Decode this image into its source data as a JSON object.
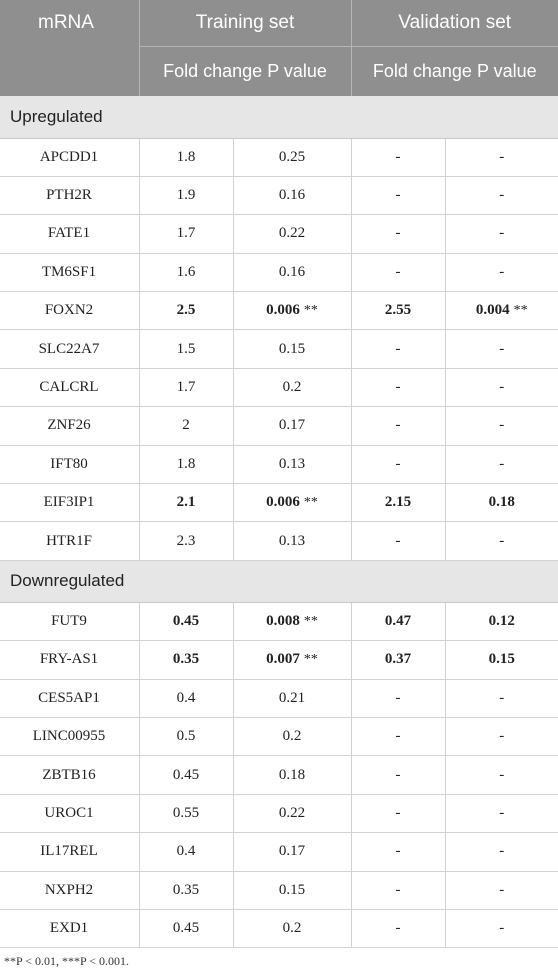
{
  "header": {
    "mrna": "mRNA",
    "training": "Training set",
    "validation": "Validation set",
    "fold_change": "Fold change",
    "p_value": "P value"
  },
  "sections": [
    {
      "label": "Upregulated",
      "rows": [
        {
          "name": "APCDD1",
          "tfc": "1.8",
          "tp": "0.25",
          "tsig": "",
          "vfc": "-",
          "vp": "-",
          "vsig": "",
          "bold": false
        },
        {
          "name": "PTH2R",
          "tfc": "1.9",
          "tp": "0.16",
          "tsig": "",
          "vfc": "-",
          "vp": "-",
          "vsig": "",
          "bold": false
        },
        {
          "name": "FATE1",
          "tfc": "1.7",
          "tp": "0.22",
          "tsig": "",
          "vfc": "-",
          "vp": "-",
          "vsig": "",
          "bold": false
        },
        {
          "name": "TM6SF1",
          "tfc": "1.6",
          "tp": "0.16",
          "tsig": "",
          "vfc": "-",
          "vp": "-",
          "vsig": "",
          "bold": false
        },
        {
          "name": "FOXN2",
          "tfc": "2.5",
          "tp": "0.006",
          "tsig": "**",
          "vfc": "2.55",
          "vp": "0.004",
          "vsig": "**",
          "bold": true
        },
        {
          "name": "SLC22A7",
          "tfc": "1.5",
          "tp": "0.15",
          "tsig": "",
          "vfc": "-",
          "vp": "-",
          "vsig": "",
          "bold": false
        },
        {
          "name": "CALCRL",
          "tfc": "1.7",
          "tp": "0.2",
          "tsig": "",
          "vfc": "-",
          "vp": "-",
          "vsig": "",
          "bold": false
        },
        {
          "name": "ZNF26",
          "tfc": "2",
          "tp": "0.17",
          "tsig": "",
          "vfc": "-",
          "vp": "-",
          "vsig": "",
          "bold": false
        },
        {
          "name": "IFT80",
          "tfc": "1.8",
          "tp": "0.13",
          "tsig": "",
          "vfc": "-",
          "vp": "-",
          "vsig": "",
          "bold": false
        },
        {
          "name": "EIF3IP1",
          "tfc": "2.1",
          "tp": "0.006",
          "tsig": "**",
          "vfc": "2.15",
          "vp": "0.18",
          "vsig": "",
          "bold": true
        },
        {
          "name": "HTR1F",
          "tfc": "2.3",
          "tp": "0.13",
          "tsig": "",
          "vfc": "-",
          "vp": "-",
          "vsig": "",
          "bold": false
        }
      ]
    },
    {
      "label": "Downregulated",
      "rows": [
        {
          "name": "FUT9",
          "tfc": "0.45",
          "tp": "0.008",
          "tsig": "**",
          "vfc": "0.47",
          "vp": "0.12",
          "vsig": "",
          "bold": true
        },
        {
          "name": "FRY-AS1",
          "tfc": "0.35",
          "tp": "0.007",
          "tsig": "**",
          "vfc": "0.37",
          "vp": "0.15",
          "vsig": "",
          "bold": true
        },
        {
          "name": "CES5AP1",
          "tfc": "0.4",
          "tp": "0.21",
          "tsig": "",
          "vfc": "-",
          "vp": "-",
          "vsig": "",
          "bold": false
        },
        {
          "name": "LINC00955",
          "tfc": "0.5",
          "tp": "0.2",
          "tsig": "",
          "vfc": "-",
          "vp": "-",
          "vsig": "",
          "bold": false
        },
        {
          "name": "ZBTB16",
          "tfc": "0.45",
          "tp": "0.18",
          "tsig": "",
          "vfc": "-",
          "vp": "-",
          "vsig": "",
          "bold": false
        },
        {
          "name": "UROC1",
          "tfc": "0.55",
          "tp": "0.22",
          "tsig": "",
          "vfc": "-",
          "vp": "-",
          "vsig": "",
          "bold": false
        },
        {
          "name": "IL17REL",
          "tfc": "0.4",
          "tp": "0.17",
          "tsig": "",
          "vfc": "-",
          "vp": "-",
          "vsig": "",
          "bold": false
        },
        {
          "name": "NXPH2",
          "tfc": "0.35",
          "tp": "0.15",
          "tsig": "",
          "vfc": "-",
          "vp": "-",
          "vsig": "",
          "bold": false
        },
        {
          "name": "EXD1",
          "tfc": "0.45",
          "tp": "0.2",
          "tsig": "",
          "vfc": "-",
          "vp": "-",
          "vsig": "",
          "bold": false
        }
      ]
    }
  ],
  "footnote": "**P < 0.01, ***P < 0.001."
}
